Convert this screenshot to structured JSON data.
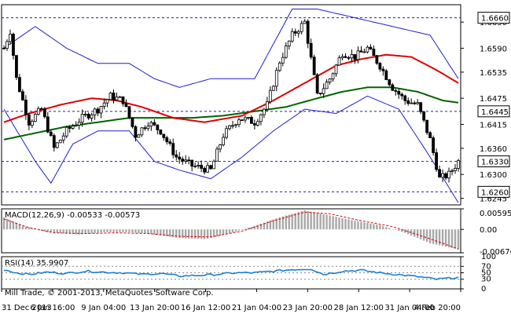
{
  "chart_data": {
    "type": "candlestick",
    "instrument_hint": "GBPUSD-like",
    "colors": {
      "candle": "#000000",
      "bollinger": "#1f1fd0",
      "ma_fast": "#e00000",
      "ma_slow": "#006400",
      "level_line": "#2020a0",
      "macd_hist": "#a8a8a8",
      "macd_signal": "#e00000",
      "rsi": "#1a7fd6"
    },
    "price_panel": {
      "ylim": [
        1.623,
        1.669
      ],
      "y_ticks": [
        "1.6650",
        "1.6590",
        "1.6535",
        "1.6475",
        "1.6415",
        "1.6360",
        "1.6300",
        "1.6245"
      ],
      "levels": [
        {
          "value": 1.666,
          "label": "1.6660"
        },
        {
          "value": 1.6445,
          "label": "1.6445"
        },
        {
          "value": 1.633,
          "label": "1.6330"
        },
        {
          "value": 1.626,
          "label": "1.6260"
        }
      ],
      "close_keypoints": [
        [
          0,
          1.659
        ],
        [
          2,
          1.663
        ],
        [
          4,
          1.652
        ],
        [
          8,
          1.642
        ],
        [
          12,
          1.645
        ],
        [
          16,
          1.636
        ],
        [
          20,
          1.64
        ],
        [
          25,
          1.643
        ],
        [
          30,
          1.645
        ],
        [
          34,
          1.648
        ],
        [
          38,
          1.647
        ],
        [
          42,
          1.639
        ],
        [
          46,
          1.642
        ],
        [
          50,
          1.64
        ],
        [
          55,
          1.634
        ],
        [
          60,
          1.632
        ],
        [
          66,
          1.631
        ],
        [
          70,
          1.639
        ],
        [
          75,
          1.643
        ],
        [
          80,
          1.642
        ],
        [
          84,
          1.646
        ],
        [
          88,
          1.656
        ],
        [
          92,
          1.662
        ],
        [
          96,
          1.665
        ],
        [
          100,
          1.648
        ],
        [
          104,
          1.652
        ],
        [
          108,
          1.658
        ],
        [
          112,
          1.657
        ],
        [
          116,
          1.659
        ],
        [
          120,
          1.655
        ],
        [
          124,
          1.65
        ],
        [
          128,
          1.647
        ],
        [
          132,
          1.646
        ],
        [
          136,
          1.638
        ],
        [
          139,
          1.629
        ],
        [
          142,
          1.63
        ],
        [
          145,
          1.633
        ]
      ],
      "bands_keypoints": {
        "upper": [
          [
            0,
            1.659
          ],
          [
            10,
            1.664
          ],
          [
            20,
            1.659
          ],
          [
            30,
            1.6555
          ],
          [
            40,
            1.6555
          ],
          [
            48,
            1.652
          ],
          [
            56,
            1.65
          ],
          [
            66,
            1.652
          ],
          [
            80,
            1.652
          ],
          [
            92,
            1.668
          ],
          [
            100,
            1.668
          ],
          [
            112,
            1.666
          ],
          [
            124,
            1.664
          ],
          [
            136,
            1.662
          ],
          [
            145,
            1.652
          ]
        ],
        "lower": [
          [
            0,
            1.645
          ],
          [
            10,
            1.633
          ],
          [
            15,
            1.628
          ],
          [
            22,
            1.637
          ],
          [
            30,
            1.64
          ],
          [
            40,
            1.64
          ],
          [
            48,
            1.633
          ],
          [
            56,
            1.631
          ],
          [
            66,
            1.629
          ],
          [
            76,
            1.634
          ],
          [
            86,
            1.64
          ],
          [
            96,
            1.645
          ],
          [
            106,
            1.644
          ],
          [
            116,
            1.648
          ],
          [
            126,
            1.645
          ],
          [
            136,
            1.634
          ],
          [
            145,
            1.6235
          ]
        ],
        "ma_fast": [
          [
            0,
            1.642
          ],
          [
            8,
            1.644
          ],
          [
            18,
            1.646
          ],
          [
            28,
            1.6475
          ],
          [
            36,
            1.647
          ],
          [
            44,
            1.6455
          ],
          [
            54,
            1.643
          ],
          [
            64,
            1.642
          ],
          [
            76,
            1.6435
          ],
          [
            86,
            1.647
          ],
          [
            96,
            1.651
          ],
          [
            106,
            1.655
          ],
          [
            114,
            1.6565
          ],
          [
            122,
            1.6575
          ],
          [
            130,
            1.657
          ],
          [
            138,
            1.654
          ],
          [
            145,
            1.651
          ]
        ],
        "ma_slow": [
          [
            0,
            1.638
          ],
          [
            10,
            1.6395
          ],
          [
            20,
            1.641
          ],
          [
            30,
            1.642
          ],
          [
            40,
            1.643
          ],
          [
            50,
            1.643
          ],
          [
            60,
            1.643
          ],
          [
            70,
            1.6435
          ],
          [
            80,
            1.6445
          ],
          [
            90,
            1.6455
          ],
          [
            100,
            1.6475
          ],
          [
            108,
            1.649
          ],
          [
            116,
            1.65
          ],
          [
            124,
            1.65
          ],
          [
            132,
            1.649
          ],
          [
            140,
            1.647
          ],
          [
            145,
            1.6465
          ]
        ]
      }
    },
    "macd_panel": {
      "label": "MACD(12,26,9) -0.00533 -0.00573",
      "ylim": [
        -0.00676,
        0.00595
      ],
      "y_ticks": [
        "0.00595",
        "0.00",
        "-0.00676"
      ],
      "hist_keypoints": [
        [
          0,
          0.0035
        ],
        [
          6,
          0.001
        ],
        [
          14,
          -0.0008
        ],
        [
          24,
          -0.0015
        ],
        [
          32,
          -0.0008
        ],
        [
          40,
          -0.0008
        ],
        [
          48,
          -0.0015
        ],
        [
          56,
          -0.0025
        ],
        [
          64,
          -0.0028
        ],
        [
          72,
          -0.0012
        ],
        [
          80,
          0.001
        ],
        [
          88,
          0.0035
        ],
        [
          96,
          0.0055
        ],
        [
          104,
          0.004
        ],
        [
          112,
          0.0025
        ],
        [
          120,
          0.0012
        ],
        [
          128,
          -0.001
        ],
        [
          136,
          -0.004
        ],
        [
          145,
          -0.0058
        ]
      ],
      "signal_keypoints": [
        [
          0,
          0.003
        ],
        [
          8,
          0.0005
        ],
        [
          16,
          -0.001
        ],
        [
          26,
          -0.0012
        ],
        [
          36,
          -0.001
        ],
        [
          46,
          -0.0012
        ],
        [
          56,
          -0.002
        ],
        [
          66,
          -0.0022
        ],
        [
          76,
          -0.0005
        ],
        [
          86,
          0.0025
        ],
        [
          96,
          0.005
        ],
        [
          104,
          0.0045
        ],
        [
          114,
          0.0025
        ],
        [
          124,
          0.0008
        ],
        [
          132,
          -0.0015
        ],
        [
          140,
          -0.004
        ],
        [
          145,
          -0.0057
        ]
      ]
    },
    "rsi_panel": {
      "label": "RSI(14) 35.9907",
      "ylim": [
        0,
        100
      ],
      "y_ticks": [
        "100",
        "70",
        "50",
        "30",
        "0"
      ],
      "levels": [
        70,
        50,
        30
      ],
      "rsi_keypoints": [
        [
          0,
          60
        ],
        [
          4,
          50
        ],
        [
          8,
          45
        ],
        [
          14,
          52
        ],
        [
          20,
          48
        ],
        [
          26,
          55
        ],
        [
          32,
          52
        ],
        [
          38,
          50
        ],
        [
          44,
          45
        ],
        [
          50,
          48
        ],
        [
          56,
          40
        ],
        [
          62,
          42
        ],
        [
          68,
          45
        ],
        [
          74,
          50
        ],
        [
          80,
          50
        ],
        [
          86,
          55
        ],
        [
          92,
          60
        ],
        [
          98,
          62
        ],
        [
          102,
          45
        ],
        [
          108,
          55
        ],
        [
          114,
          58
        ],
        [
          120,
          50
        ],
        [
          126,
          44
        ],
        [
          132,
          38
        ],
        [
          138,
          30
        ],
        [
          142,
          33
        ],
        [
          145,
          36
        ]
      ]
    },
    "x_labels": [
      "31 Dec 2013",
      "6 Jan 16:00",
      "9 Jan 04:00",
      "13 Jan 20:00",
      "16 Jan 12:00",
      "21 Jan 04:00",
      "23 Jan 20:00",
      "28 Jan 12:00",
      "31 Jan 04:00",
      "4 Feb 20:00"
    ],
    "copyright": "Mill Trade, © 2001-2013, MetaQuotes Software Corp."
  }
}
